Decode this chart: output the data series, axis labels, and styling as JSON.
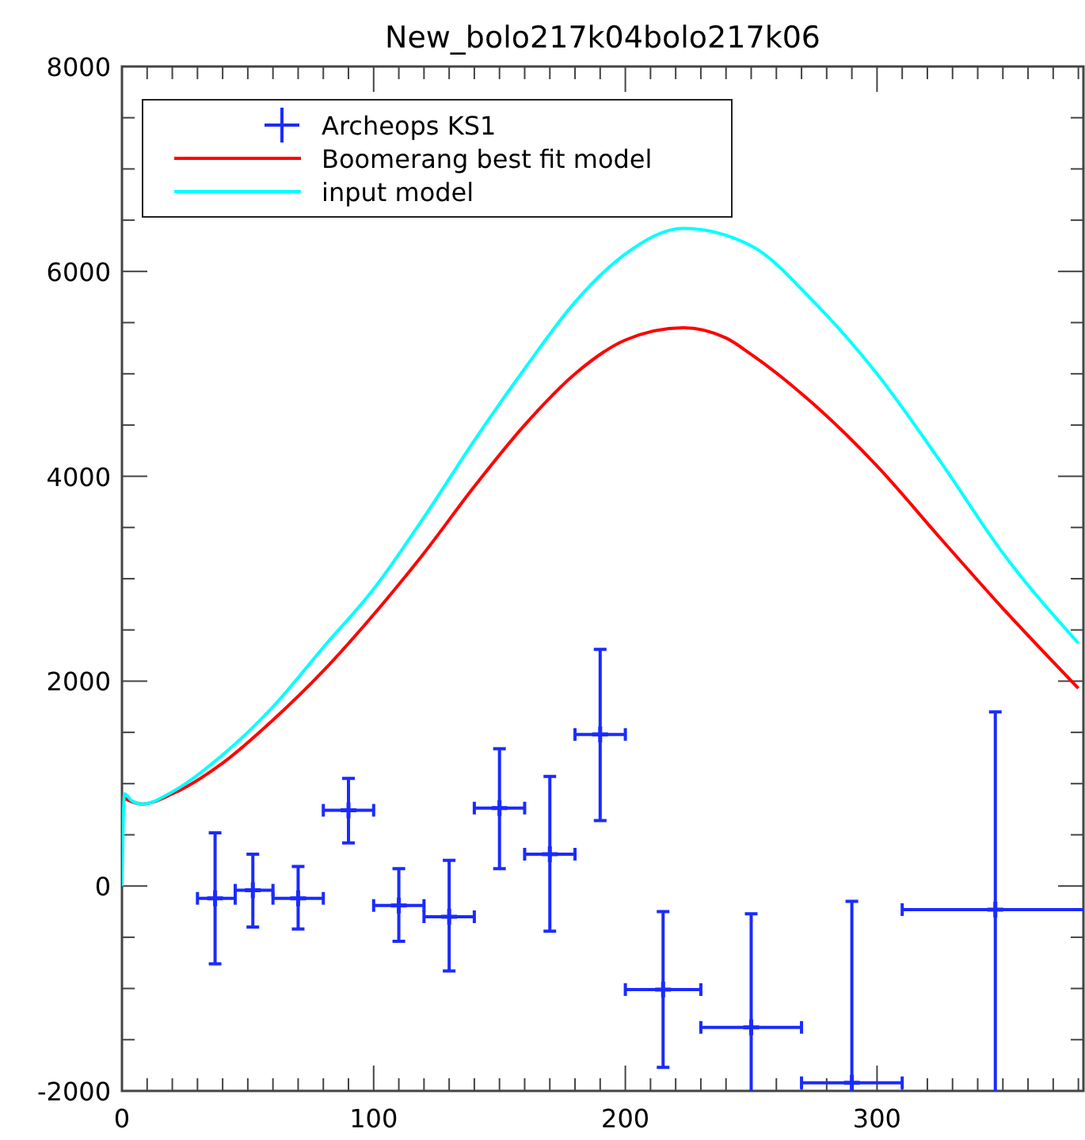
{
  "chart_data": {
    "type": "scatter",
    "title": "New_bolo217k04bolo217k06",
    "xlim": [
      0,
      382
    ],
    "ylim": [
      -2000,
      8000
    ],
    "xticks": [
      0,
      {
        "value": 10,
        "label": null
      },
      {
        "value": 20,
        "label": null
      },
      {
        "value": 30,
        "label": null
      },
      {
        "value": 40,
        "label": null
      },
      {
        "value": 50,
        "label": null
      },
      {
        "value": 60,
        "label": null
      },
      {
        "value": 70,
        "label": null
      },
      {
        "value": 80,
        "label": null
      },
      {
        "value": 90,
        "label": null
      },
      100,
      {
        "value": 110,
        "label": null
      },
      {
        "value": 120,
        "label": null
      },
      {
        "value": 130,
        "label": null
      },
      {
        "value": 140,
        "label": null
      },
      {
        "value": 150,
        "label": null
      },
      {
        "value": 160,
        "label": null
      },
      {
        "value": 170,
        "label": null
      },
      {
        "value": 180,
        "label": null
      },
      {
        "value": 190,
        "label": null
      },
      200,
      {
        "value": 210,
        "label": null
      },
      {
        "value": 220,
        "label": null
      },
      {
        "value": 230,
        "label": null
      },
      {
        "value": 240,
        "label": null
      },
      {
        "value": 250,
        "label": null
      },
      {
        "value": 260,
        "label": null
      },
      {
        "value": 270,
        "label": null
      },
      {
        "value": 280,
        "label": null
      },
      {
        "value": 290,
        "label": null
      },
      300,
      {
        "value": 310,
        "label": null
      },
      {
        "value": 320,
        "label": null
      },
      {
        "value": 330,
        "label": null
      },
      {
        "value": 340,
        "label": null
      },
      {
        "value": 350,
        "label": null
      },
      {
        "value": 360,
        "label": null
      },
      {
        "value": 370,
        "label": null
      },
      {
        "value": 380,
        "label": null
      }
    ],
    "yticks": [
      -2000,
      {
        "value": -1500,
        "label": null
      },
      {
        "value": -1000,
        "label": null
      },
      {
        "value": -500,
        "label": null
      },
      0,
      {
        "value": 500,
        "label": null
      },
      {
        "value": 1000,
        "label": null
      },
      {
        "value": 1500,
        "label": null
      },
      2000,
      {
        "value": 2500,
        "label": null
      },
      {
        "value": 3000,
        "label": null
      },
      {
        "value": 3500,
        "label": null
      },
      4000,
      {
        "value": 4500,
        "label": null
      },
      {
        "value": 5000,
        "label": null
      },
      {
        "value": 5500,
        "label": null
      },
      6000,
      {
        "value": 6500,
        "label": null
      },
      {
        "value": 7000,
        "label": null
      },
      {
        "value": 7500,
        "label": null
      },
      8000
    ],
    "grid": false,
    "legend": "top left",
    "series": [
      {
        "name": "Archeops KS1",
        "marker": "cross",
        "color": "#1a2bff",
        "x": [
          37,
          52,
          70,
          90,
          110,
          130,
          150,
          170,
          190,
          215,
          250,
          290,
          347
        ],
        "values": [
          -120,
          -40,
          -120,
          740,
          -190,
          -300,
          760,
          310,
          1480,
          -1010,
          -1380,
          -1920,
          -230
        ],
        "errors": [
          [
            -760,
            520
          ],
          [
            -400,
            310
          ],
          [
            -420,
            190
          ],
          [
            420,
            1050
          ],
          [
            -540,
            170
          ],
          [
            -830,
            250
          ],
          [
            170,
            1340
          ],
          [
            -440,
            1070
          ],
          [
            640,
            2310
          ],
          [
            -1770,
            -250
          ],
          [
            -2000,
            -270
          ],
          [
            -2000,
            -150
          ],
          [
            -2000,
            1700
          ]
        ],
        "xerrors": [
          [
            30,
            45
          ],
          [
            45,
            60
          ],
          [
            60,
            80
          ],
          [
            80,
            100
          ],
          [
            100,
            120
          ],
          [
            120,
            140
          ],
          [
            140,
            160
          ],
          [
            160,
            180
          ],
          [
            180,
            200
          ],
          [
            200,
            230
          ],
          [
            230,
            270
          ],
          [
            270,
            310
          ],
          [
            310,
            382
          ]
        ]
      },
      {
        "name": "Boomerang best fit model",
        "type": "line",
        "marker": "none",
        "line_style": "solid",
        "color": "#ff0000",
        "x": [
          0,
          8,
          20,
          40,
          60,
          80,
          100,
          120,
          140,
          160,
          180,
          200,
          223,
          240,
          250,
          275,
          300,
          325,
          350,
          380
        ],
        "values": [
          870,
          800,
          900,
          1200,
          1620,
          2100,
          2650,
          3250,
          3900,
          4500,
          5000,
          5330,
          5450,
          5350,
          5190,
          4700,
          4100,
          3400,
          2710,
          1930
        ]
      },
      {
        "name": "input model",
        "type": "line",
        "marker": "none",
        "line_style": "solid",
        "color": "#00ffff",
        "x": [
          0,
          1,
          4,
          8,
          20,
          40,
          60,
          80,
          100,
          120,
          140,
          160,
          180,
          200,
          223,
          250,
          275,
          300,
          325,
          350,
          380
        ],
        "values": [
          0,
          900,
          830,
          800,
          920,
          1280,
          1750,
          2330,
          2900,
          3600,
          4350,
          5050,
          5700,
          6170,
          6420,
          6250,
          5700,
          5000,
          4150,
          3250,
          2370
        ]
      }
    ]
  }
}
